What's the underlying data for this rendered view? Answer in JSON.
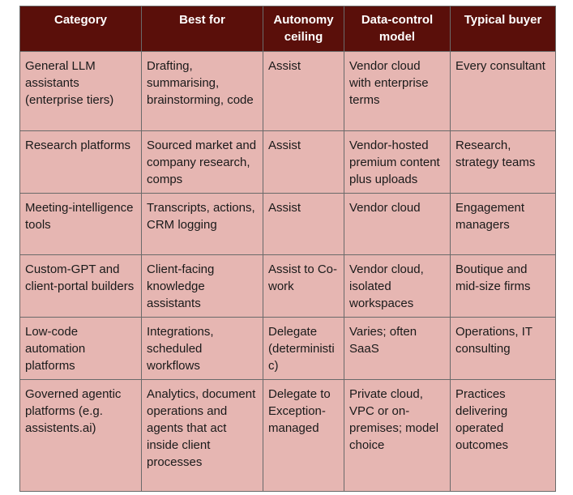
{
  "table": {
    "headers": [
      "Category",
      "Best for",
      "Autonomy ceiling",
      "Data-control model",
      "Typical buyer"
    ],
    "rows": [
      [
        "General LLM assistants (enterprise tiers)",
        "Drafting, summarising, brainstorming, code",
        "Assist",
        "Vendor cloud with enterprise terms",
        "Every consultant"
      ],
      [
        "Research platforms",
        "Sourced market and company research, comps",
        "Assist",
        "Vendor-hosted premium content plus uploads",
        "Research, strategy teams"
      ],
      [
        "Meeting-intelligence tools",
        "Transcripts, actions, CRM logging",
        "Assist",
        "Vendor cloud",
        "Engagement managers"
      ],
      [
        "Custom-GPT and client-portal builders",
        "Client-facing knowledge assistants",
        "Assist to Co-work",
        "Vendor cloud, isolated workspaces",
        "Boutique and mid-size firms"
      ],
      [
        "Low-code automation platforms",
        "Integrations, scheduled workflows",
        "Delegate (deterministic)",
        "Varies; often SaaS",
        "Operations, IT consulting"
      ],
      [
        "Governed agentic platforms (e.g. assistents.ai)",
        "Analytics, document operations and agents that act inside client processes",
        "Delegate to Exception-managed",
        "Private cloud, VPC or on-premises; model choice",
        "Practices delivering operated outcomes"
      ]
    ]
  },
  "colors": {
    "header_bg": "#5a0f0a",
    "header_text": "#ffffff",
    "body_bg": "#e6b6b2",
    "border": "#6a6a6a"
  }
}
